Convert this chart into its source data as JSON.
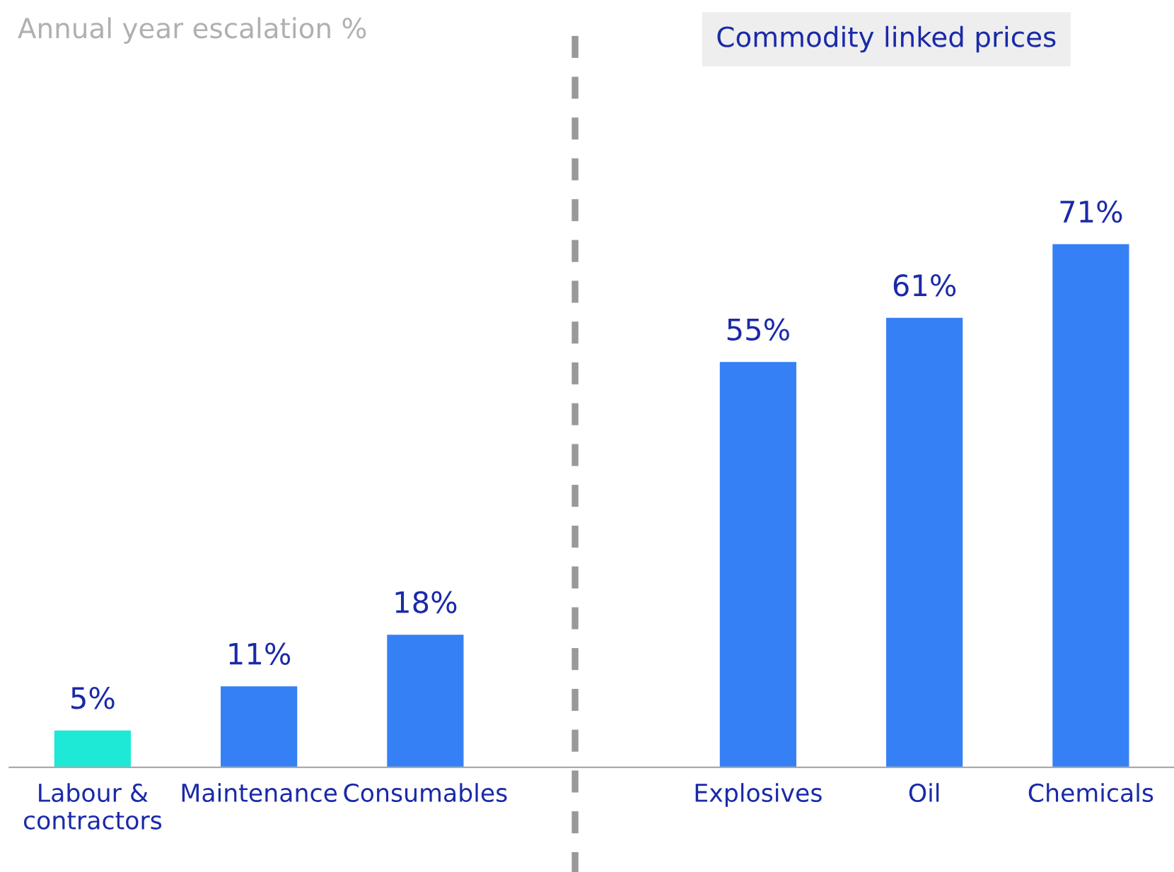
{
  "chart_data": {
    "type": "bar",
    "title": "Annual year escalation %",
    "categories": [
      "Labour &\ncontractors",
      "Maintenance",
      "Consumables",
      null,
      "Explosives",
      "Oil",
      "Chemicals"
    ],
    "values": [
      5,
      11,
      18,
      null,
      55,
      61,
      71
    ],
    "colors": [
      "#1de9d6",
      "#3580f5",
      "#3580f5",
      "#3580f5",
      "#3580f5",
      "#3580f5",
      "#3580f5"
    ],
    "value_labels": [
      "5%",
      "11%",
      "18%",
      null,
      "55%",
      "61%",
      "71%"
    ],
    "annotations": [
      "Commodity linked prices"
    ],
    "grid": false,
    "legend": false
  }
}
